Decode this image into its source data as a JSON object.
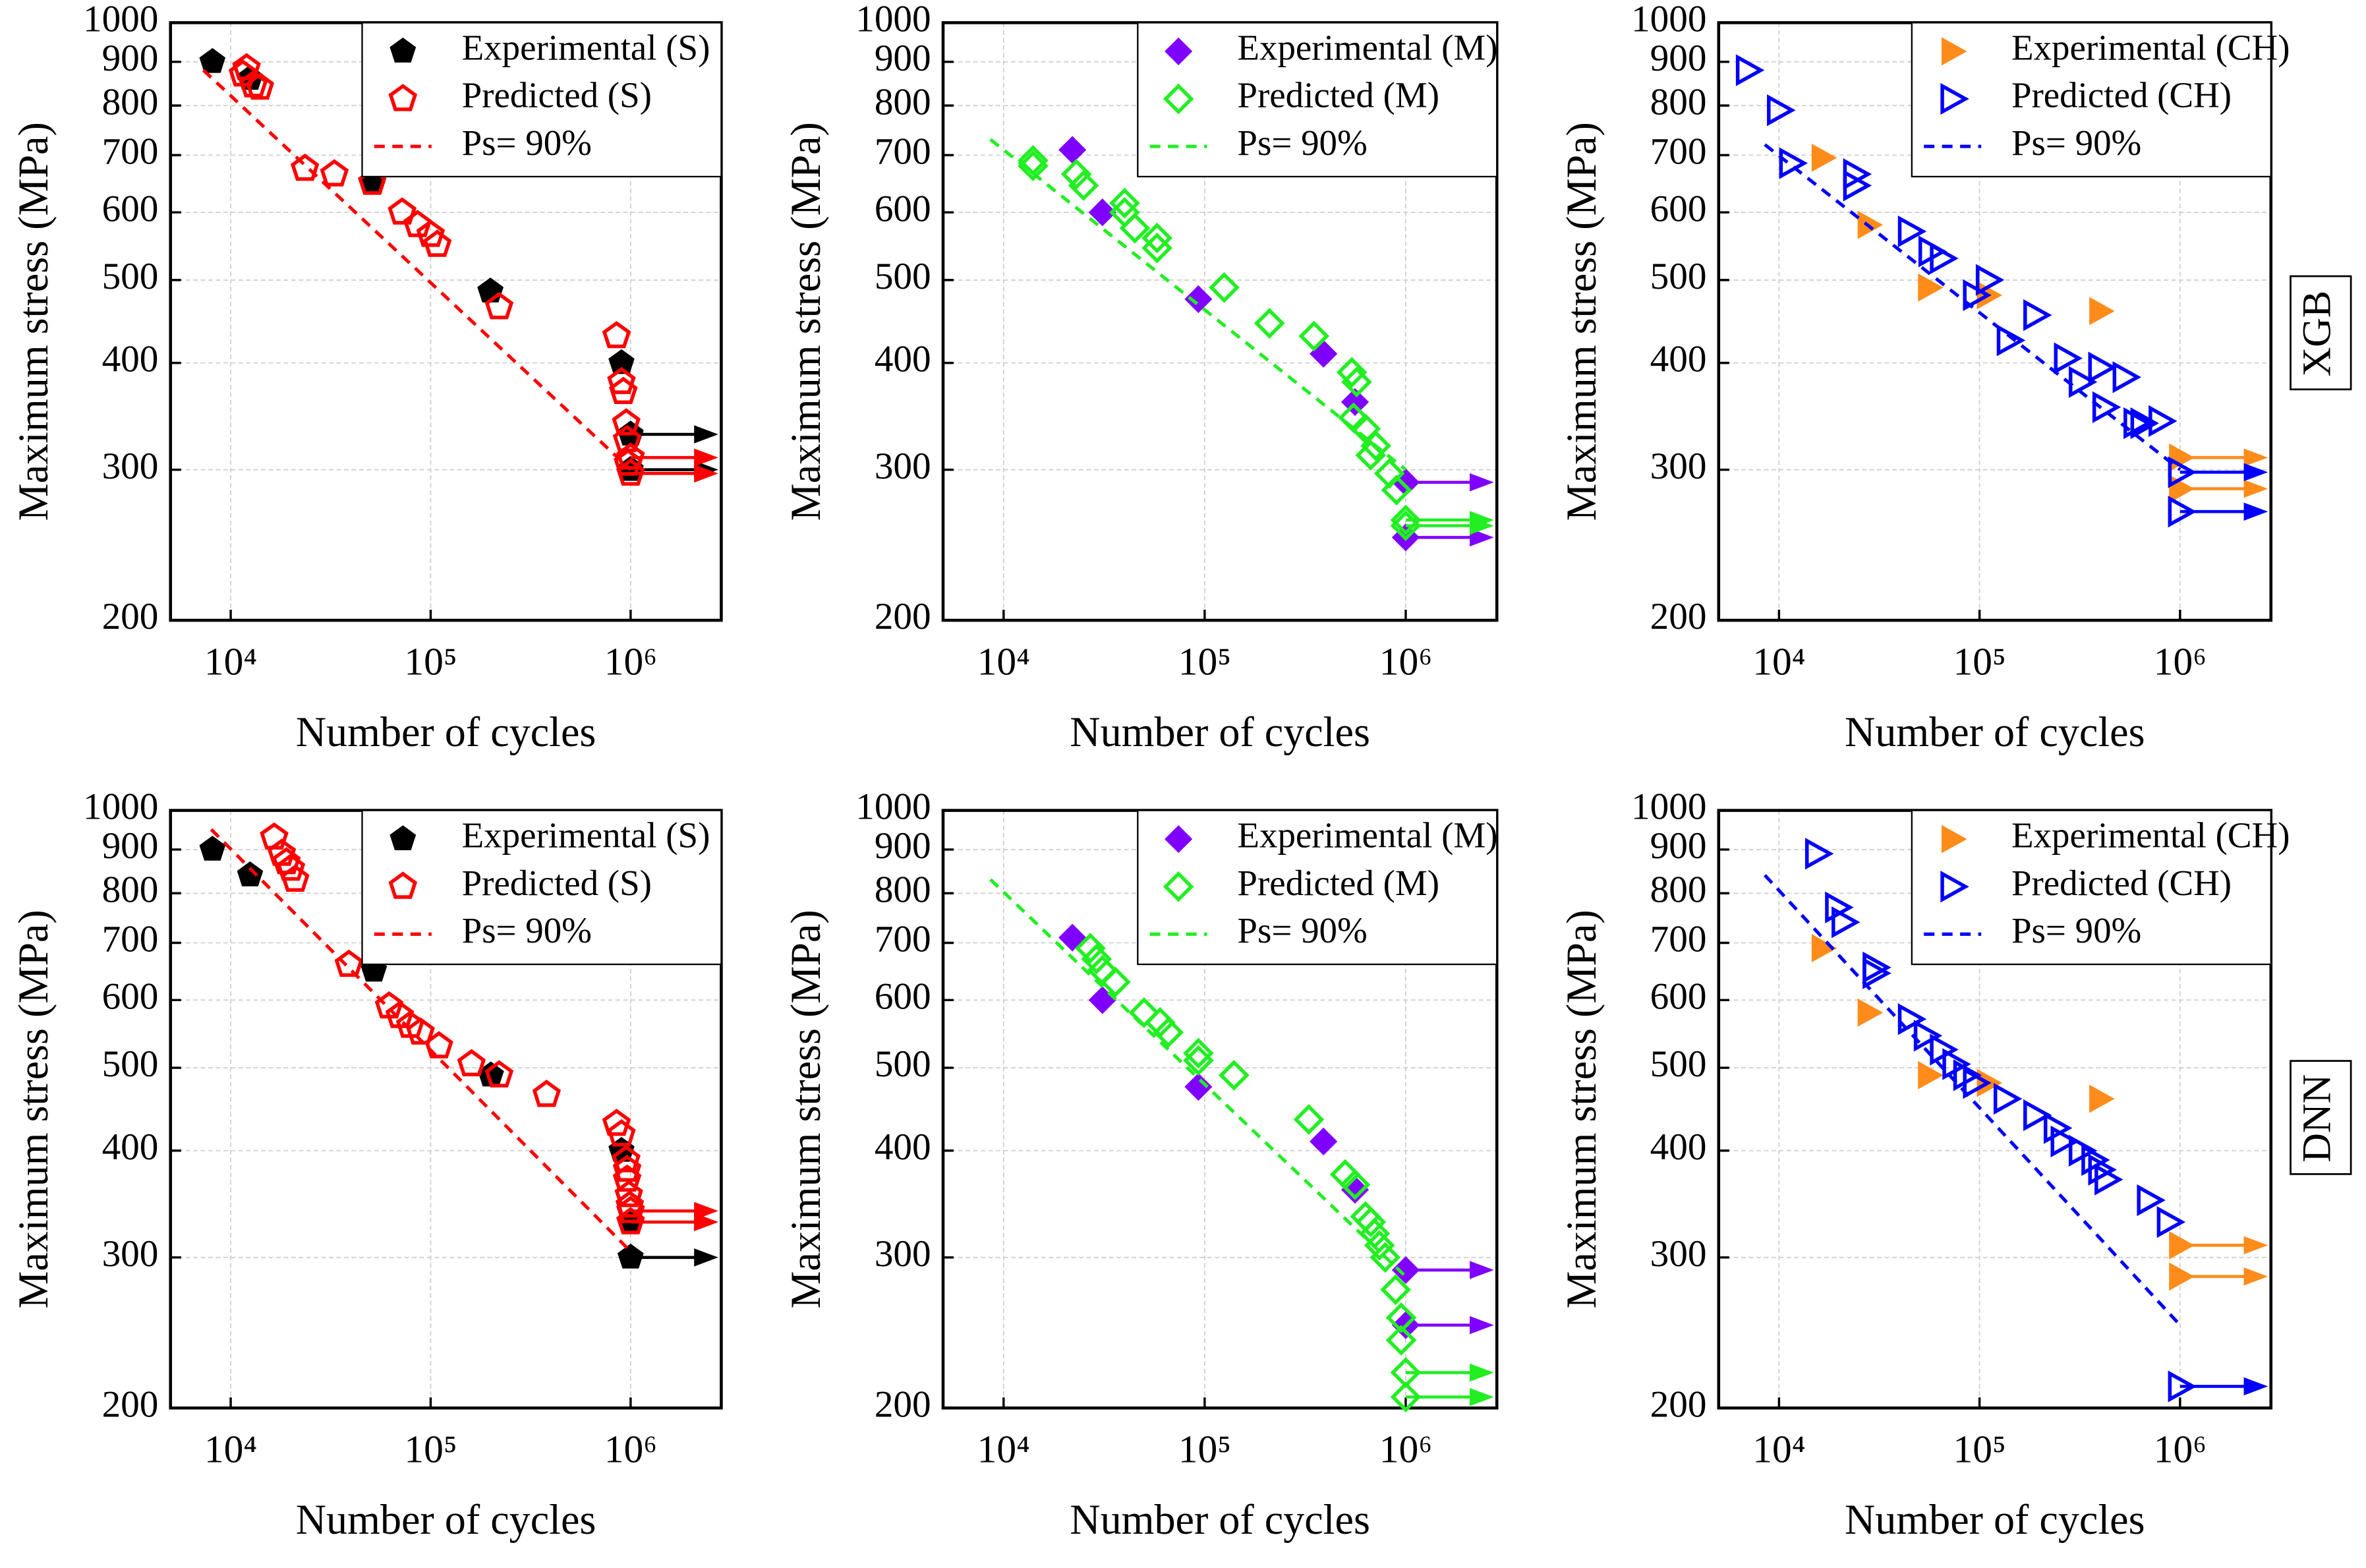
{
  "panel_labels": [
    "XGB",
    "DNN"
  ],
  "chart_data": [
    {
      "type": "scatter",
      "xlabel": "Number of cycles",
      "ylabel": "Maximum stress (MPa)",
      "log_x": true,
      "log_y": true,
      "grid": true,
      "legend": "upper right",
      "xlim": [
        5000,
        2840000
      ],
      "ylim": [
        200,
        1000
      ],
      "xticks": [
        {
          "value": 10000,
          "label": "10⁴"
        },
        {
          "value": 100000,
          "label": "10⁵"
        },
        {
          "value": 1000000,
          "label": "10⁶"
        }
      ],
      "yticks": [
        200,
        300,
        400,
        500,
        600,
        700,
        800,
        900,
        1000
      ],
      "series": [
        {
          "name": "Experimental (S)",
          "color": "#000000",
          "marker": "pentagon",
          "filled": true,
          "x": [
            8100,
            12500,
            51000,
            199000,
            900000,
            1000000,
            1000000
          ],
          "values": [
            900,
            860,
            650,
            485,
            400,
            330,
            300
          ],
          "runout": [
            false,
            false,
            false,
            false,
            false,
            true,
            true
          ]
        },
        {
          "name": "Predicted (S)",
          "color": "#ff0000",
          "marker": "pentagon",
          "filled": false,
          "x": [
            11500,
            12000,
            13000,
            14000,
            23500,
            33000,
            51000,
            72000,
            86000,
            100000,
            108000,
            220000,
            850000,
            900000,
            920000,
            950000,
            960000,
            970000,
            1000000,
            1000000
          ],
          "values": [
            870,
            885,
            845,
            840,
            675,
            665,
            650,
            600,
            580,
            565,
            550,
            465,
            430,
            380,
            370,
            340,
            325,
            305,
            310,
            297
          ],
          "runout": [
            false,
            false,
            false,
            false,
            false,
            false,
            false,
            false,
            false,
            false,
            false,
            false,
            false,
            false,
            false,
            false,
            false,
            false,
            true,
            true
          ]
        },
        {
          "name": "Ps= 90%",
          "color": "#ff0000",
          "marker": "none",
          "line": "dashed",
          "x": [
            7300,
            1000000
          ],
          "values": [
            880,
            300
          ]
        }
      ]
    },
    {
      "type": "scatter",
      "xlabel": "Number of cycles",
      "ylabel": "Maximum stress (MPa)",
      "log_x": true,
      "log_y": true,
      "grid": true,
      "legend": "upper right",
      "xlim": [
        5000,
        2840000
      ],
      "ylim": [
        200,
        1000
      ],
      "xticks": [
        {
          "value": 10000,
          "label": "10⁴"
        },
        {
          "value": 100000,
          "label": "10⁵"
        },
        {
          "value": 1000000,
          "label": "10⁶"
        }
      ],
      "yticks": [
        200,
        300,
        400,
        500,
        600,
        700,
        800,
        900,
        1000
      ],
      "series": [
        {
          "name": "Experimental (M)",
          "color": "#8000ff",
          "marker": "diamond",
          "filled": true,
          "x": [
            22000,
            31000,
            93000,
            390000,
            560000,
            1000000,
            1000000
          ],
          "values": [
            710,
            600,
            475,
            410,
            360,
            290,
            250
          ],
          "runout": [
            false,
            false,
            false,
            false,
            false,
            true,
            true
          ]
        },
        {
          "name": "Predicted (M)",
          "color": "#22ee22",
          "marker": "diamond",
          "filled": false,
          "x": [
            14000,
            14000,
            23000,
            25000,
            40000,
            40000,
            45000,
            58000,
            58000,
            125000,
            210000,
            350000,
            540000,
            570000,
            550000,
            630000,
            710000,
            670000,
            830000,
            900000,
            1000000,
            1000000
          ],
          "values": [
            690,
            680,
            665,
            645,
            615,
            600,
            575,
            560,
            545,
            490,
            445,
            430,
            390,
            380,
            345,
            335,
            320,
            312,
            297,
            284,
            262,
            258
          ],
          "runout": [
            false,
            false,
            false,
            false,
            false,
            false,
            false,
            false,
            false,
            false,
            false,
            false,
            false,
            false,
            false,
            false,
            false,
            false,
            false,
            false,
            true,
            true
          ]
        },
        {
          "name": "Ps= 90%",
          "color": "#22ee22",
          "marker": "none",
          "line": "dashed",
          "x": [
            8600,
            1000000
          ],
          "values": [
            730,
            300
          ]
        }
      ]
    },
    {
      "type": "scatter",
      "xlabel": "Number of cycles",
      "ylabel": "Maximum stress (MPa)",
      "log_x": true,
      "log_y": true,
      "grid": true,
      "legend": "upper right",
      "xlim": [
        5000,
        2840000
      ],
      "ylim": [
        200,
        1000
      ],
      "xticks": [
        {
          "value": 10000,
          "label": "10⁴"
        },
        {
          "value": 100000,
          "label": "10⁵"
        },
        {
          "value": 1000000,
          "label": "10⁶"
        }
      ],
      "yticks": [
        200,
        300,
        400,
        500,
        600,
        700,
        800,
        900,
        1000
      ],
      "series": [
        {
          "name": "Experimental (CH)",
          "color": "#ff8c1a",
          "marker": "triangle",
          "filled": true,
          "x": [
            16500,
            28000,
            56000,
            110000,
            400000,
            1000000,
            1000000
          ],
          "values": [
            695,
            580,
            490,
            480,
            460,
            310,
            285
          ],
          "runout": [
            false,
            false,
            false,
            false,
            false,
            true,
            true
          ]
        },
        {
          "name": "Predicted (CH)",
          "color": "#0000ff",
          "marker": "triangle",
          "filled": false,
          "x": [
            7000,
            10000,
            11500,
            24000,
            24000,
            45000,
            57000,
            65000,
            95000,
            110000,
            140000,
            190000,
            270000,
            320000,
            400000,
            420000,
            530000,
            600000,
            650000,
            800000,
            1000000,
            1000000
          ],
          "values": [
            880,
            790,
            685,
            665,
            645,
            570,
            540,
            530,
            480,
            500,
            425,
            455,
            405,
            380,
            395,
            355,
            385,
            340,
            340,
            342,
            298,
            268
          ],
          "runout": [
            false,
            false,
            false,
            false,
            false,
            false,
            false,
            false,
            false,
            false,
            false,
            false,
            false,
            false,
            false,
            false,
            false,
            false,
            false,
            false,
            true,
            true
          ]
        },
        {
          "name": "Ps= 90%",
          "color": "#0000ff",
          "marker": "none",
          "line": "dashed",
          "x": [
            8500,
            1000000
          ],
          "values": [
            720,
            300
          ]
        }
      ]
    },
    {
      "type": "scatter",
      "xlabel": "Number of cycles",
      "ylabel": "Maximum stress (MPa)",
      "log_x": true,
      "log_y": true,
      "grid": true,
      "legend": "upper right",
      "xlim": [
        5000,
        2840000
      ],
      "ylim": [
        200,
        1000
      ],
      "xticks": [
        {
          "value": 10000,
          "label": "10⁴"
        },
        {
          "value": 100000,
          "label": "10⁵"
        },
        {
          "value": 1000000,
          "label": "10⁶"
        }
      ],
      "yticks": [
        200,
        300,
        400,
        500,
        600,
        700,
        800,
        900,
        1000
      ],
      "series": [
        {
          "name": "Experimental (S)",
          "color": "#000000",
          "marker": "pentagon",
          "filled": true,
          "x": [
            8100,
            12500,
            52000,
            200000,
            900000,
            1000000,
            1000000
          ],
          "values": [
            900,
            840,
            650,
            490,
            400,
            330,
            300
          ],
          "runout": [
            false,
            false,
            false,
            false,
            false,
            true,
            true
          ]
        },
        {
          "name": "Predicted (S)",
          "color": "#ff0000",
          "marker": "pentagon",
          "filled": false,
          "x": [
            16500,
            18000,
            19000,
            20000,
            21000,
            39000,
            62000,
            70000,
            79000,
            89000,
            110000,
            160000,
            220000,
            380000,
            850000,
            900000,
            950000,
            960000,
            960000,
            980000,
            990000,
            1000000,
            1000000
          ],
          "values": [
            930,
            890,
            870,
            855,
            830,
            660,
            590,
            575,
            560,
            550,
            530,
            505,
            490,
            465,
            430,
            418,
            390,
            380,
            370,
            355,
            345,
            340,
            330
          ],
          "runout": [
            false,
            false,
            false,
            false,
            false,
            false,
            false,
            false,
            false,
            false,
            false,
            false,
            false,
            false,
            false,
            false,
            false,
            false,
            false,
            false,
            false,
            true,
            true
          ]
        },
        {
          "name": "Ps= 90%",
          "color": "#ff0000",
          "marker": "none",
          "line": "dashed",
          "x": [
            8000,
            1000000
          ],
          "values": [
            950,
            305
          ]
        }
      ]
    },
    {
      "type": "scatter",
      "xlabel": "Number of cycles",
      "ylabel": "Maximum stress (MPa)",
      "log_x": true,
      "log_y": true,
      "grid": true,
      "legend": "upper right",
      "xlim": [
        5000,
        2840000
      ],
      "ylim": [
        200,
        1000
      ],
      "xticks": [
        {
          "value": 10000,
          "label": "10⁴"
        },
        {
          "value": 100000,
          "label": "10⁵"
        },
        {
          "value": 1000000,
          "label": "10⁶"
        }
      ],
      "yticks": [
        200,
        300,
        400,
        500,
        600,
        700,
        800,
        900,
        1000
      ],
      "series": [
        {
          "name": "Experimental (M)",
          "color": "#8000ff",
          "marker": "diamond",
          "filled": true,
          "x": [
            22000,
            31000,
            93000,
            390000,
            560000,
            1000000,
            1000000
          ],
          "values": [
            710,
            600,
            475,
            410,
            360,
            290,
            250
          ],
          "runout": [
            false,
            false,
            false,
            false,
            false,
            true,
            true
          ]
        },
        {
          "name": "Predicted (M)",
          "color": "#22ee22",
          "marker": "diamond",
          "filled": false,
          "x": [
            27000,
            29000,
            31000,
            36000,
            50000,
            60000,
            66000,
            93000,
            93000,
            140000,
            330000,
            500000,
            560000,
            630000,
            670000,
            700000,
            740000,
            790000,
            890000,
            950000,
            950000,
            1000000,
            1000000
          ],
          "values": [
            690,
            670,
            650,
            630,
            580,
            565,
            550,
            520,
            510,
            490,
            435,
            375,
            365,
            335,
            330,
            320,
            310,
            300,
            275,
            255,
            240,
            220,
            206
          ],
          "runout": [
            false,
            false,
            false,
            false,
            false,
            false,
            false,
            false,
            false,
            false,
            false,
            false,
            false,
            false,
            false,
            false,
            false,
            false,
            false,
            false,
            false,
            true,
            true
          ]
        },
        {
          "name": "Ps= 90%",
          "color": "#22ee22",
          "marker": "none",
          "line": "dashed",
          "x": [
            8600,
            1000000
          ],
          "values": [
            830,
            285
          ]
        }
      ]
    },
    {
      "type": "scatter",
      "xlabel": "Number of cycles",
      "ylabel": "Maximum stress (MPa)",
      "log_x": true,
      "log_y": true,
      "grid": true,
      "legend": "upper right",
      "xlim": [
        5000,
        2840000
      ],
      "ylim": [
        200,
        1000
      ],
      "xticks": [
        {
          "value": 10000,
          "label": "10⁴"
        },
        {
          "value": 100000,
          "label": "10⁵"
        },
        {
          "value": 1000000,
          "label": "10⁶"
        }
      ],
      "yticks": [
        200,
        300,
        400,
        500,
        600,
        700,
        800,
        900,
        1000
      ],
      "series": [
        {
          "name": "Experimental (CH)",
          "color": "#ff8c1a",
          "marker": "triangle",
          "filled": true,
          "x": [
            16500,
            28000,
            56000,
            110000,
            400000,
            1000000,
            1000000
          ],
          "values": [
            690,
            580,
            490,
            480,
            460,
            310,
            285
          ],
          "runout": [
            false,
            false,
            false,
            false,
            false,
            true,
            true
          ]
        },
        {
          "name": "Predicted (CH)",
          "color": "#0000ff",
          "marker": "triangle",
          "filled": false,
          "x": [
            15500,
            19500,
            21000,
            30000,
            30000,
            45000,
            54000,
            65000,
            75000,
            85000,
            95000,
            135000,
            190000,
            240000,
            260000,
            320000,
            370000,
            400000,
            430000,
            700000,
            880000,
            1000000
          ],
          "values": [
            890,
            770,
            740,
            655,
            645,
            570,
            545,
            525,
            505,
            490,
            480,
            460,
            440,
            425,
            410,
            400,
            390,
            380,
            370,
            350,
            330,
            212
          ],
          "runout": [
            false,
            false,
            false,
            false,
            false,
            false,
            false,
            false,
            false,
            false,
            false,
            false,
            false,
            false,
            false,
            false,
            false,
            false,
            false,
            false,
            false,
            true
          ]
        },
        {
          "name": "Ps= 90%",
          "color": "#0000ff",
          "marker": "none",
          "line": "dashed",
          "x": [
            8500,
            1000000
          ],
          "values": [
            840,
            250
          ]
        }
      ]
    }
  ]
}
